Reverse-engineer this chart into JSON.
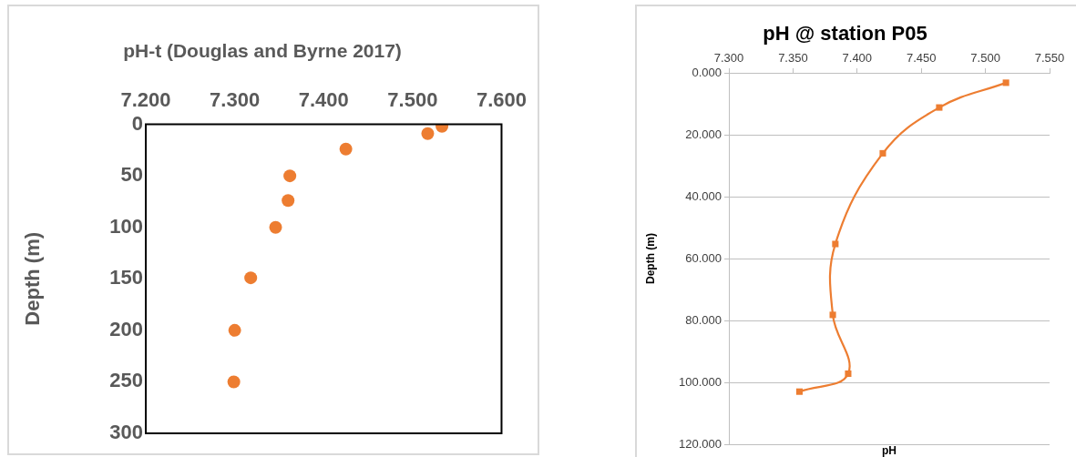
{
  "chart_data": [
    {
      "type": "scatter",
      "title": "pH-t (Douglas and Byrne 2017)",
      "ylabel": "Depth (m)",
      "marker": "circle",
      "grid": false,
      "x": [
        7.533,
        7.517,
        7.425,
        7.362,
        7.36,
        7.346,
        7.318,
        7.3,
        7.299
      ],
      "series": [
        {
          "color": "#ed7d31",
          "values": [
            2,
            9,
            24,
            50,
            74,
            100,
            149,
            200,
            250
          ]
        }
      ],
      "xlim": [
        7.2,
        7.6
      ],
      "xticks": [
        {
          "value": 7.2,
          "label": "7.200"
        },
        {
          "value": 7.3,
          "label": "7.300"
        },
        {
          "value": 7.4,
          "label": "7.400"
        },
        {
          "value": 7.5,
          "label": "7.500"
        },
        {
          "value": 7.6,
          "label": "7.600"
        }
      ],
      "ylim": [
        300,
        0
      ],
      "yticks": [
        0,
        50,
        100,
        150,
        200,
        250,
        300
      ]
    },
    {
      "type": "line",
      "title": "pH @ station P05",
      "xlabel": "pH",
      "ylabel": "Depth (m)",
      "marker": "square",
      "grid": "y",
      "x": [
        7.516,
        7.464,
        7.42,
        7.383,
        7.381,
        7.393,
        7.355
      ],
      "series": [
        {
          "color": "#ed7d31",
          "values": [
            3.2,
            11.2,
            26,
            55.3,
            78.2,
            97.2,
            103
          ]
        }
      ],
      "xlim": [
        7.3,
        7.55
      ],
      "xticks": [
        {
          "value": 7.3,
          "label": "7.300"
        },
        {
          "value": 7.35,
          "label": "7.350"
        },
        {
          "value": 7.4,
          "label": "7.400"
        },
        {
          "value": 7.45,
          "label": "7.450"
        },
        {
          "value": 7.5,
          "label": "7.500"
        },
        {
          "value": 7.55,
          "label": "7.550"
        }
      ],
      "ylim": [
        120,
        0
      ],
      "yticks": [
        {
          "value": 0,
          "label": "0.000"
        },
        {
          "value": 20,
          "label": "20.000"
        },
        {
          "value": 40,
          "label": "40.000"
        },
        {
          "value": 60,
          "label": "60.000"
        },
        {
          "value": 80,
          "label": "80.000"
        },
        {
          "value": 100,
          "label": "100.000"
        },
        {
          "value": 120,
          "label": "120.000"
        }
      ]
    }
  ]
}
